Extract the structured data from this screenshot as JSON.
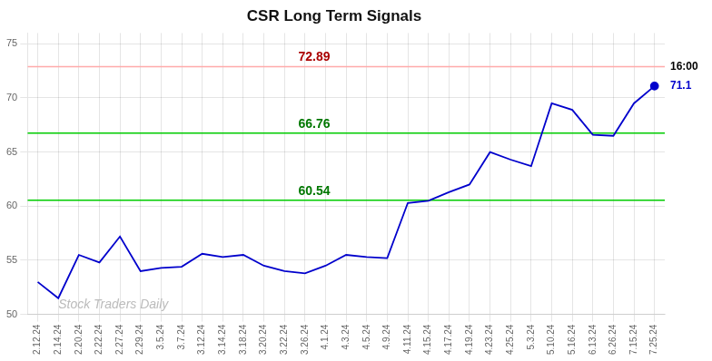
{
  "chart_data": {
    "type": "line",
    "title": "CSR Long Term Signals",
    "categories": [
      "2.12.24",
      "2.14.24",
      "2.20.24",
      "2.22.24",
      "2.27.24",
      "2.29.24",
      "3.5.24",
      "3.7.24",
      "3.12.24",
      "3.14.24",
      "3.18.24",
      "3.20.24",
      "3.22.24",
      "3.26.24",
      "4.1.24",
      "4.3.24",
      "4.5.24",
      "4.9.24",
      "4.11.24",
      "4.15.24",
      "4.17.24",
      "4.19.24",
      "4.23.24",
      "4.25.24",
      "5.3.24",
      "5.10.24",
      "5.16.24",
      "6.13.24",
      "6.26.24",
      "7.15.24",
      "7.25.24"
    ],
    "values": [
      53.0,
      51.5,
      55.5,
      54.8,
      57.2,
      54.0,
      54.3,
      54.4,
      55.6,
      55.3,
      55.5,
      54.5,
      54.0,
      53.8,
      54.5,
      55.5,
      55.3,
      55.2,
      60.3,
      60.5,
      61.3,
      62.0,
      65.0,
      64.3,
      63.7,
      69.5,
      68.9,
      66.6,
      66.5,
      69.5,
      71.1
    ],
    "color": "#0000cc",
    "ylim": [
      50,
      76
    ],
    "yticks": [
      50,
      55,
      60,
      65,
      70,
      75
    ],
    "grid": true,
    "reference_lines": [
      {
        "y": 72.89,
        "label": "72.89",
        "color": "#ffaaaa",
        "text_color": "#aa0000"
      },
      {
        "y": 66.76,
        "label": "66.76",
        "color": "#00cc00",
        "text_color": "#007700"
      },
      {
        "y": 60.54,
        "label": "60.54",
        "color": "#00cc00",
        "text_color": "#007700"
      }
    ],
    "annotations": [
      {
        "text": "16:00",
        "y": 72.89,
        "color": "#000000"
      },
      {
        "text": "71.1",
        "y": 71.1,
        "color": "#0000cc"
      },
      {
        "text": "Stock Traders Daily",
        "color": "#bbbbbb"
      }
    ]
  }
}
